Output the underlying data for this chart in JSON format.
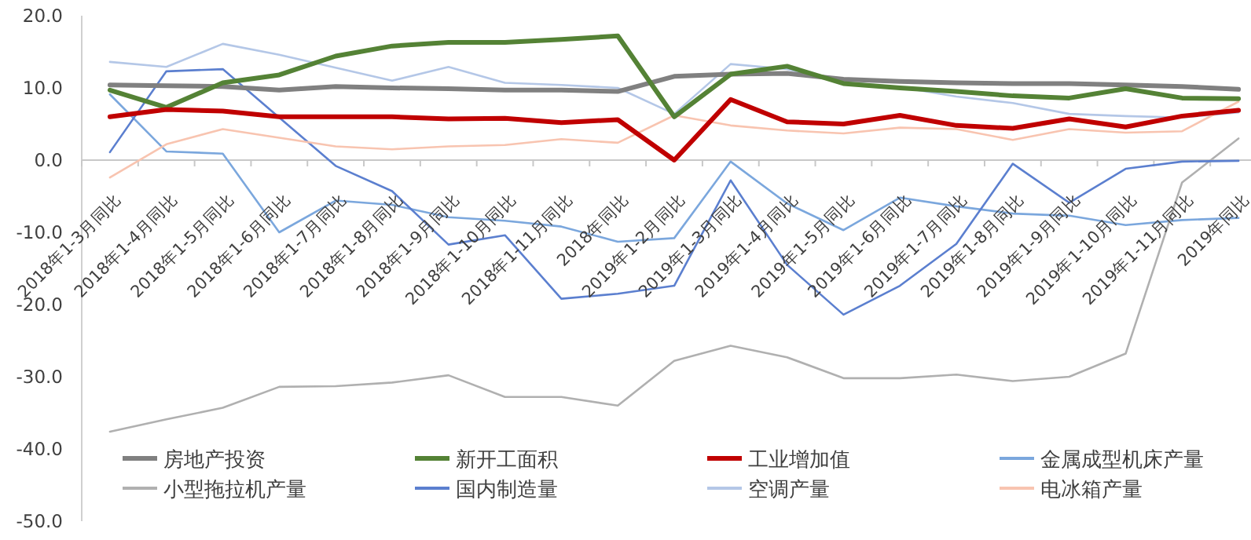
{
  "chart_data": {
    "type": "line",
    "categories": [
      "2018年1-3月同比",
      "2018年1-4月同比",
      "2018年1-5月同比",
      "2018年1-6月同比",
      "2018年1-7月同比",
      "2018年1-8月同比",
      "2018年1-9月同比",
      "2018年1-10月同比",
      "2018年1-11月同比",
      "2018年同比",
      "2019年1-2月同比",
      "2019年1-3月同比",
      "2019年1-4月同比",
      "2019年1-5月同比",
      "2019年1-6月同比",
      "2019年1-7月同比",
      "2019年1-8月同比",
      "2019年1-9月同比",
      "2019年1-10月同比",
      "2019年1-11月同比",
      "2019年同比"
    ],
    "series": [
      {
        "name": "房地产投资",
        "color": "#808080",
        "values": [
          10.4,
          10.3,
          10.2,
          9.7,
          10.2,
          10.0,
          9.9,
          9.7,
          9.7,
          9.5,
          11.6,
          11.9,
          12.0,
          11.2,
          10.9,
          10.7,
          10.6,
          10.6,
          10.4,
          10.2,
          9.8
        ]
      },
      {
        "name": "新开工面积",
        "color": "#548235",
        "values": [
          9.7,
          7.3,
          10.7,
          11.8,
          14.4,
          15.8,
          16.3,
          16.3,
          16.7,
          17.2,
          6.0,
          11.9,
          13.0,
          10.6,
          10.0,
          9.5,
          8.9,
          8.6,
          9.9,
          8.6,
          8.5
        ]
      },
      {
        "name": "工业增加值",
        "color": "#c00000",
        "values": [
          6.0,
          7.0,
          6.8,
          6.0,
          6.0,
          6.0,
          5.7,
          5.8,
          5.2,
          5.6,
          0.0,
          8.4,
          5.3,
          5.0,
          6.2,
          4.8,
          4.4,
          5.7,
          4.6,
          6.1,
          6.9
        ]
      },
      {
        "name": "金属成型机床产量",
        "color": "#7ba7dd",
        "values": [
          9.1,
          1.2,
          0.9,
          -10.0,
          -5.6,
          -6.2,
          -7.9,
          -8.4,
          -9.2,
          -11.3,
          -10.8,
          -0.2,
          -6.0,
          -9.7,
          -5.2,
          -6.4,
          -7.4,
          -7.7,
          -9.0,
          -8.3,
          -8.0
        ]
      },
      {
        "name": "小型拖拉机产量",
        "color": "#b0b0b0",
        "values": [
          -37.6,
          -35.9,
          -34.3,
          -31.4,
          -31.3,
          -30.8,
          -29.8,
          -32.8,
          -32.8,
          -34.0,
          -27.8,
          -25.7,
          -27.3,
          -30.2,
          -30.2,
          -29.7,
          -30.6,
          -30.0,
          -26.8,
          -3.1,
          3.0
        ]
      },
      {
        "name": "国内制造量",
        "color": "#5b7fcf",
        "values": [
          1.1,
          12.3,
          12.6,
          5.9,
          -0.8,
          -4.3,
          -11.7,
          -10.4,
          -19.2,
          -18.5,
          -17.4,
          -2.8,
          -14.5,
          -21.4,
          -17.4,
          -11.6,
          -0.5,
          -5.9,
          -1.2,
          -0.2,
          -0.1
        ]
      },
      {
        "name": "空调产量",
        "color": "#b4c7e7",
        "values": [
          13.6,
          12.9,
          16.1,
          14.6,
          12.8,
          11.0,
          12.9,
          10.7,
          10.4,
          10.0,
          6.4,
          13.3,
          12.6,
          10.8,
          10.1,
          8.8,
          7.9,
          6.4,
          6.1,
          5.9,
          6.6
        ]
      },
      {
        "name": "电冰箱产量",
        "color": "#f8c4b0",
        "values": [
          -2.4,
          2.2,
          4.3,
          3.1,
          1.9,
          1.5,
          1.9,
          2.1,
          2.9,
          2.4,
          6.2,
          4.8,
          4.1,
          3.7,
          4.5,
          4.3,
          2.8,
          4.3,
          3.8,
          4.0,
          8.1
        ]
      }
    ],
    "ylim": [
      -50,
      20
    ],
    "yticks": [
      {
        "value": 20,
        "label": "20.0"
      },
      {
        "value": 10,
        "label": "10.0"
      },
      {
        "value": 0,
        "label": "0.0"
      },
      {
        "value": -10,
        "label": "-10.0"
      },
      {
        "value": -20,
        "label": "-20.0"
      },
      {
        "value": -30,
        "label": "-30.0"
      },
      {
        "value": -40,
        "label": "-40.0"
      },
      {
        "value": -50,
        "label": "-50.0"
      }
    ],
    "legend": "bottom"
  }
}
